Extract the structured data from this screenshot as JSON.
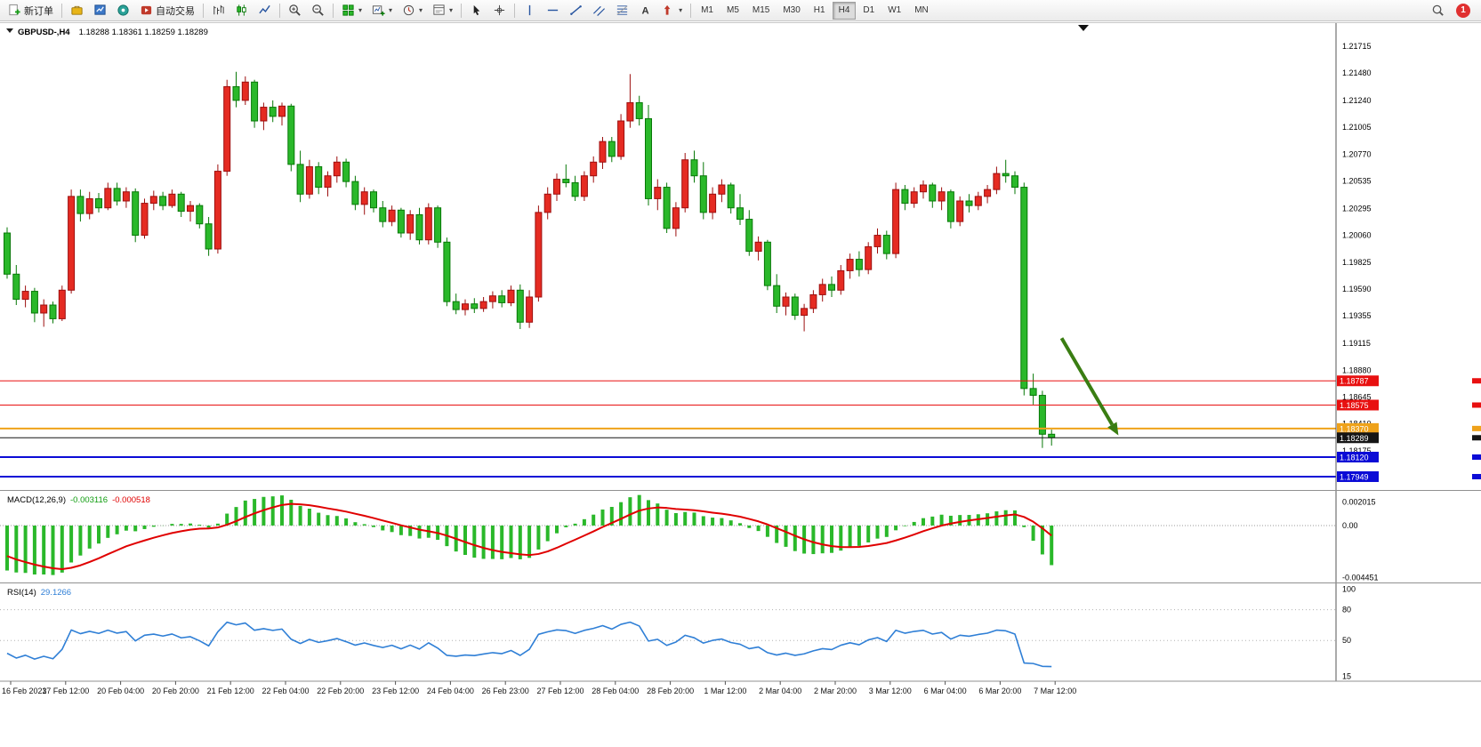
{
  "toolbar": {
    "new_order_label": "新订单",
    "auto_trading_label": "自动交易",
    "notification_badge": "1",
    "timeframes": [
      "M1",
      "M5",
      "M15",
      "M30",
      "H1",
      "H4",
      "D1",
      "W1",
      "MN"
    ],
    "active_timeframe": "H4",
    "buttons": [
      {
        "name": "new-order",
        "icon": "new-order-icon",
        "label": "新订单"
      },
      {
        "sep": true
      },
      {
        "name": "charts-toolbox",
        "icon": "toolbox-icon"
      },
      {
        "name": "market-watch",
        "icon": "market-watch-icon"
      },
      {
        "name": "navigator",
        "icon": "navigator-icon"
      },
      {
        "name": "auto-trading",
        "icon": "auto-trading-icon",
        "label": "自动交易"
      },
      {
        "sep": true
      },
      {
        "name": "bar-chart",
        "icon": "bar-chart-icon"
      },
      {
        "name": "candlestick-chart",
        "icon": "candlestick-icon"
      },
      {
        "name": "line-chart",
        "icon": "line-chart-icon"
      },
      {
        "sep": true
      },
      {
        "name": "zoom-in",
        "icon": "zoom-in-icon"
      },
      {
        "name": "zoom-out",
        "icon": "zoom-out-icon"
      },
      {
        "sep": true
      },
      {
        "name": "indicators",
        "icon": "indicators-icon",
        "caret": true
      },
      {
        "name": "new-chart",
        "icon": "add-chart-icon",
        "caret": true
      },
      {
        "name": "periods",
        "icon": "periods-icon",
        "caret": true
      },
      {
        "name": "templates",
        "icon": "templates-icon",
        "caret": true
      },
      {
        "sep": true
      },
      {
        "name": "cursor",
        "icon": "cursor-icon"
      },
      {
        "name": "crosshair",
        "icon": "crosshair-icon"
      },
      {
        "sep": true
      },
      {
        "name": "vertical-line",
        "icon": "vline-icon"
      },
      {
        "name": "horizontal-line",
        "icon": "hline-icon"
      },
      {
        "name": "trendline",
        "icon": "trendline-icon"
      },
      {
        "name": "equidistant-channel",
        "icon": "channel-icon"
      },
      {
        "name": "fibonacci",
        "icon": "fibonacci-icon"
      },
      {
        "name": "text-tool",
        "icon": "text-icon"
      },
      {
        "name": "arrows-tool",
        "icon": "arrows-icon",
        "caret": true
      },
      {
        "sep": true
      }
    ]
  },
  "chart_data": {
    "type": "candlestick",
    "symbol": "GBPUSD-,H4",
    "ohlc_display": "1.18288 1.18361 1.18259 1.18289",
    "price_range": {
      "top": 1.219,
      "bottom": 1.1784
    },
    "price_axis_ticks": [
      "1.21715",
      "1.21480",
      "1.21240",
      "1.21005",
      "1.20770",
      "1.20535",
      "1.20295",
      "1.20060",
      "1.19825",
      "1.19590",
      "1.19355",
      "1.19115",
      "1.18880",
      "1.18645",
      "1.18410",
      "1.18175"
    ],
    "colors": {
      "up_border": "#9c0f0f",
      "up_fill": "#e52b22",
      "down_border": "#077807",
      "down_fill": "#2ab82a",
      "macd_bar": "#2ab82a",
      "macd_signal": "#e00000",
      "rsi_line": "#2f7fd6",
      "arrow": "#3a7d12"
    },
    "hlines": [
      {
        "price": 1.18787,
        "label": "1.18787",
        "color": "#e81010",
        "width": 1
      },
      {
        "price": 1.18575,
        "label": "1.18575",
        "color": "#e81010",
        "width": 1
      },
      {
        "price": 1.1837,
        "label": "1.18370",
        "color": "#efa21a",
        "width": 2
      },
      {
        "price": 1.18289,
        "label": "1.18289",
        "color": "#151515",
        "width": 1
      },
      {
        "price": 1.1812,
        "label": "1.18120",
        "color": "#0b0bd6",
        "width": 2
      },
      {
        "price": 1.17949,
        "label": "1.17949",
        "color": "#0b0bd6",
        "width": 2
      }
    ],
    "arrow": {
      "from": {
        "index": 115.1,
        "price": 1.1916
      },
      "to": {
        "index": 121.3,
        "price": 1.1831
      }
    },
    "candles": [
      [
        1.2008,
        1.2013,
        1.1968,
        1.1972
      ],
      [
        1.1972,
        1.198,
        1.1945,
        1.195
      ],
      [
        1.195,
        1.1962,
        1.1943,
        1.1957
      ],
      [
        1.1957,
        1.196,
        1.193,
        1.1938
      ],
      [
        1.1938,
        1.195,
        1.1926,
        1.1945
      ],
      [
        1.1945,
        1.1948,
        1.1929,
        1.1933
      ],
      [
        1.1933,
        1.1962,
        1.1931,
        1.1958
      ],
      [
        1.1958,
        1.2046,
        1.1955,
        1.204
      ],
      [
        1.204,
        1.2046,
        1.2018,
        1.2025
      ],
      [
        1.2025,
        1.2044,
        1.202,
        1.2038
      ],
      [
        1.2038,
        1.2043,
        1.2026,
        1.203
      ],
      [
        1.203,
        1.2052,
        1.2028,
        1.2047
      ],
      [
        1.2047,
        1.2052,
        1.2032,
        1.2036
      ],
      [
        1.2036,
        1.2048,
        1.203,
        1.2044
      ],
      [
        1.2044,
        1.2047,
        1.2,
        1.2006
      ],
      [
        1.2006,
        1.2038,
        1.2003,
        1.2034
      ],
      [
        1.2034,
        1.2045,
        1.2028,
        1.204
      ],
      [
        1.204,
        1.2044,
        1.2028,
        1.2032
      ],
      [
        1.2032,
        1.2046,
        1.203,
        1.2042
      ],
      [
        1.2042,
        1.2044,
        1.2022,
        1.2027
      ],
      [
        1.2027,
        1.2036,
        1.2018,
        1.2032
      ],
      [
        1.2032,
        1.2034,
        1.2012,
        1.2016
      ],
      [
        1.2016,
        1.2022,
        1.1988,
        1.1994
      ],
      [
        1.1994,
        1.2068,
        1.199,
        1.2062
      ],
      [
        1.2062,
        1.2142,
        1.2058,
        1.2136
      ],
      [
        1.2136,
        1.2149,
        1.2118,
        1.2124
      ],
      [
        1.2124,
        1.2145,
        1.212,
        1.214
      ],
      [
        1.214,
        1.2142,
        1.21,
        1.2106
      ],
      [
        1.2106,
        1.2122,
        1.2098,
        1.2118
      ],
      [
        1.2118,
        1.2124,
        1.2105,
        1.211
      ],
      [
        1.211,
        1.2122,
        1.2102,
        1.2119
      ],
      [
        1.2119,
        1.2121,
        1.2062,
        1.2068
      ],
      [
        1.2068,
        1.208,
        1.2035,
        1.2042
      ],
      [
        1.2042,
        1.2072,
        1.2038,
        1.2066
      ],
      [
        1.2066,
        1.207,
        1.2042,
        1.2048
      ],
      [
        1.2048,
        1.2062,
        1.204,
        1.2058
      ],
      [
        1.2058,
        1.2075,
        1.2052,
        1.207
      ],
      [
        1.207,
        1.2073,
        1.2048,
        1.2053
      ],
      [
        1.2053,
        1.2058,
        1.2028,
        1.2033
      ],
      [
        1.2033,
        1.2048,
        1.2024,
        1.2044
      ],
      [
        1.2044,
        1.2046,
        1.2026,
        1.203
      ],
      [
        1.203,
        1.2036,
        1.2013,
        1.2018
      ],
      [
        1.2018,
        1.2032,
        1.2014,
        1.2028
      ],
      [
        1.2028,
        1.203,
        1.2004,
        1.2008
      ],
      [
        1.2008,
        1.2028,
        1.2002,
        1.2024
      ],
      [
        1.2024,
        1.203,
        1.1998,
        1.2002
      ],
      [
        1.2002,
        1.2034,
        1.1998,
        1.203
      ],
      [
        1.203,
        1.2032,
        1.1995,
        1.2
      ],
      [
        1.2,
        1.2004,
        1.1944,
        1.1948
      ],
      [
        1.1948,
        1.1955,
        1.1937,
        1.1941
      ],
      [
        1.1941,
        1.195,
        1.1936,
        1.1946
      ],
      [
        1.1946,
        1.1951,
        1.1938,
        1.1942
      ],
      [
        1.1942,
        1.1952,
        1.1939,
        1.1948
      ],
      [
        1.1948,
        1.1957,
        1.1942,
        1.1953
      ],
      [
        1.1953,
        1.1958,
        1.1943,
        1.1947
      ],
      [
        1.1947,
        1.1962,
        1.1944,
        1.1958
      ],
      [
        1.1958,
        1.1963,
        1.1924,
        1.193
      ],
      [
        1.193,
        1.1958,
        1.1925,
        1.1952
      ],
      [
        1.1952,
        1.2032,
        1.1948,
        1.2026
      ],
      [
        1.2026,
        1.2048,
        1.202,
        1.2042
      ],
      [
        1.2042,
        1.206,
        1.2036,
        1.2055
      ],
      [
        1.2055,
        1.2068,
        1.2048,
        1.2052
      ],
      [
        1.2052,
        1.2058,
        1.2036,
        1.204
      ],
      [
        1.204,
        1.2062,
        1.2036,
        1.2058
      ],
      [
        1.2058,
        1.2075,
        1.2052,
        1.207
      ],
      [
        1.207,
        1.2092,
        1.2064,
        1.2088
      ],
      [
        1.2088,
        1.2092,
        1.207,
        1.2075
      ],
      [
        1.2075,
        1.2112,
        1.2072,
        1.2106
      ],
      [
        1.2106,
        1.2147,
        1.21,
        1.2122
      ],
      [
        1.2122,
        1.2128,
        1.2102,
        1.2108
      ],
      [
        1.2108,
        1.212,
        1.2032,
        1.2038
      ],
      [
        1.2038,
        1.2055,
        1.2028,
        1.2048
      ],
      [
        1.2048,
        1.2052,
        1.2008,
        1.2012
      ],
      [
        1.2012,
        1.2035,
        1.2005,
        1.203
      ],
      [
        1.203,
        1.2078,
        1.2026,
        1.2072
      ],
      [
        1.2072,
        1.208,
        1.2052,
        1.2058
      ],
      [
        1.2058,
        1.207,
        1.202,
        1.2026
      ],
      [
        1.2026,
        1.2048,
        1.202,
        1.2042
      ],
      [
        1.2042,
        1.2055,
        1.2035,
        1.205
      ],
      [
        1.205,
        1.2052,
        1.2025,
        1.203
      ],
      [
        1.203,
        1.2042,
        1.2015,
        1.202
      ],
      [
        1.202,
        1.2028,
        1.1988,
        1.1992
      ],
      [
        1.1992,
        1.2005,
        1.1984,
        1.2
      ],
      [
        1.2,
        1.2002,
        1.1958,
        1.1962
      ],
      [
        1.1962,
        1.1972,
        1.1938,
        1.1944
      ],
      [
        1.1944,
        1.1956,
        1.1936,
        1.1952
      ],
      [
        1.1952,
        1.1955,
        1.1932,
        1.1936
      ],
      [
        1.1936,
        1.1946,
        1.1922,
        1.1942
      ],
      [
        1.1942,
        1.1958,
        1.1938,
        1.1954
      ],
      [
        1.1954,
        1.1968,
        1.1948,
        1.1963
      ],
      [
        1.1963,
        1.197,
        1.1952,
        1.1958
      ],
      [
        1.1958,
        1.198,
        1.1954,
        1.1975
      ],
      [
        1.1975,
        1.199,
        1.1968,
        1.1985
      ],
      [
        1.1985,
        1.1992,
        1.197,
        1.1976
      ],
      [
        1.1976,
        1.2,
        1.1972,
        1.1996
      ],
      [
        1.1996,
        1.2012,
        1.199,
        1.2006
      ],
      [
        1.2006,
        1.201,
        1.1985,
        1.199
      ],
      [
        1.199,
        1.2052,
        1.1986,
        1.2046
      ],
      [
        1.2046,
        1.205,
        1.2028,
        1.2034
      ],
      [
        1.2034,
        1.2048,
        1.203,
        1.2044
      ],
      [
        1.2044,
        1.2054,
        1.2038,
        1.205
      ],
      [
        1.205,
        1.2052,
        1.203,
        1.2036
      ],
      [
        1.2036,
        1.2048,
        1.2028,
        1.2044
      ],
      [
        1.2044,
        1.2046,
        1.2012,
        1.2018
      ],
      [
        1.2018,
        1.204,
        1.2014,
        1.2036
      ],
      [
        1.2036,
        1.2042,
        1.2026,
        1.2032
      ],
      [
        1.2032,
        1.2044,
        1.2028,
        1.204
      ],
      [
        1.204,
        1.205,
        1.2034,
        1.2046
      ],
      [
        1.2046,
        1.2066,
        1.2042,
        1.206
      ],
      [
        1.206,
        1.2072,
        1.2052,
        1.2058
      ],
      [
        1.2058,
        1.2062,
        1.2042,
        1.2048
      ],
      [
        1.2048,
        1.2052,
        1.1866,
        1.1872
      ],
      [
        1.1872,
        1.1885,
        1.1858,
        1.1866
      ],
      [
        1.1866,
        1.187,
        1.182,
        1.1832
      ],
      [
        1.1832,
        1.1836,
        1.1822,
        1.1829
      ]
    ],
    "time_labels": [
      "16 Feb 2023",
      "17 Feb 12:00",
      "20 Feb 04:00",
      "20 Feb 20:00",
      "21 Feb 12:00",
      "22 Feb 04:00",
      "22 Feb 20:00",
      "23 Feb 12:00",
      "24 Feb 04:00",
      "26 Feb 23:00",
      "27 Feb 12:00",
      "28 Feb 04:00",
      "28 Feb 20:00",
      "1 Mar 12:00",
      "2 Mar 04:00",
      "2 Mar 20:00",
      "3 Mar 12:00",
      "6 Mar 04:00",
      "6 Mar 20:00",
      "7 Mar 12:00"
    ],
    "macd": {
      "label": "MACD(12,26,9)",
      "value_main": "-0.003116",
      "value_signal": "-0.000518",
      "axis_ticks": [
        {
          "v": 0.002015,
          "label": "0.002015"
        },
        {
          "v": 0,
          "label": "0.00"
        },
        {
          "v": -0.004451,
          "label": "-0.004451"
        }
      ]
    },
    "rsi": {
      "label": "RSI(14)",
      "value": "29.1266",
      "axis_ticks": [
        {
          "v": 100,
          "label": "100"
        },
        {
          "v": 80,
          "label": "80"
        },
        {
          "v": 50,
          "label": "50"
        },
        {
          "v": 15,
          "label": "15"
        }
      ],
      "levels": [
        80,
        50
      ]
    }
  }
}
